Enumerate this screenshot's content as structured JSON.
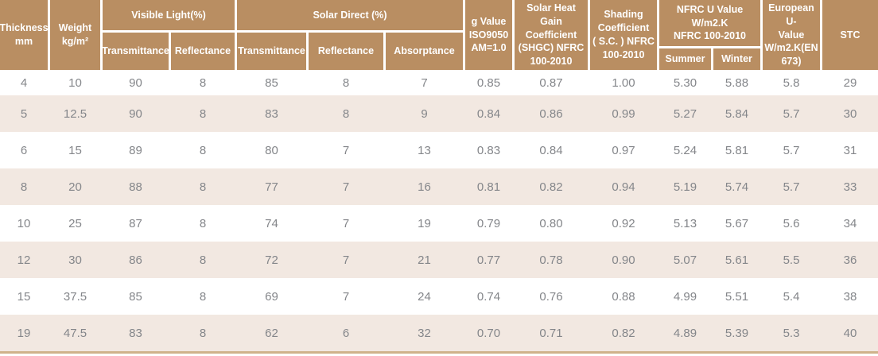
{
  "colors": {
    "header_bg": "#b98e62",
    "stripe_bg": "#f2e8e1",
    "bottom_border": "#cfb28a",
    "data_text": "#84868a",
    "header_text": "#ffffff"
  },
  "table": {
    "headers": {
      "thickness": "Thickness\nmm",
      "weight": "Weight\nkg/m²",
      "visible_light_group": "Visible Light(%)",
      "vl_transmittance": "Transmittance",
      "vl_reflectance": "Reflectance",
      "solar_direct_group": "Solar Direct (%)",
      "sd_transmittance": "Transmittance",
      "sd_reflectance": "Reflectance",
      "sd_absorptance": "Absorptance",
      "g_value": "g Value\nISO9050\nAM=1.0",
      "shgc": "Solar Heat Gain\nCoefficient\n(SHGC) NFRC\n100-2010",
      "shading_coefficient": "Shading\nCoefficient\n( S.C. ) NFRC\n100-2010",
      "nfrc_u_value_group": "NFRC U Value\nW/m2.K\nNFRC 100-2010",
      "summer": "Summer",
      "winter": "Winter",
      "european_u_value": "European U-\nValue\nW/m2.K(EN\n673)",
      "stc": "STC"
    },
    "column_keys": [
      "thickness",
      "weight",
      "vl-transmittance",
      "vl-reflectance",
      "sd-transmittance",
      "sd-reflectance",
      "sd-absorptance",
      "g-value",
      "shgc",
      "shading-coefficient",
      "nfrc-u-summer",
      "nfrc-u-winter",
      "european-u-value",
      "stc"
    ],
    "rows": [
      [
        "4",
        "10",
        "90",
        "8",
        "85",
        "8",
        "7",
        "0.85",
        "0.87",
        "1.00",
        "5.30",
        "5.88",
        "5.8",
        "29"
      ],
      [
        "5",
        "12.5",
        "90",
        "8",
        "83",
        "8",
        "9",
        "0.84",
        "0.86",
        "0.99",
        "5.27",
        "5.84",
        "5.7",
        "30"
      ],
      [
        "6",
        "15",
        "89",
        "8",
        "80",
        "7",
        "13",
        "0.83",
        "0.84",
        "0.97",
        "5.24",
        "5.81",
        "5.7",
        "31"
      ],
      [
        "8",
        "20",
        "88",
        "8",
        "77",
        "7",
        "16",
        "0.81",
        "0.82",
        "0.94",
        "5.19",
        "5.74",
        "5.7",
        "33"
      ],
      [
        "10",
        "25",
        "87",
        "8",
        "74",
        "7",
        "19",
        "0.79",
        "0.80",
        "0.92",
        "5.13",
        "5.67",
        "5.6",
        "34"
      ],
      [
        "12",
        "30",
        "86",
        "8",
        "72",
        "7",
        "21",
        "0.77",
        "0.78",
        "0.90",
        "5.07",
        "5.61",
        "5.5",
        "36"
      ],
      [
        "15",
        "37.5",
        "85",
        "8",
        "69",
        "7",
        "24",
        "0.74",
        "0.76",
        "0.88",
        "4.99",
        "5.51",
        "5.4",
        "38"
      ],
      [
        "19",
        "47.5",
        "83",
        "8",
        "62",
        "6",
        "32",
        "0.70",
        "0.71",
        "0.82",
        "4.89",
        "5.39",
        "5.3",
        "40"
      ]
    ]
  }
}
